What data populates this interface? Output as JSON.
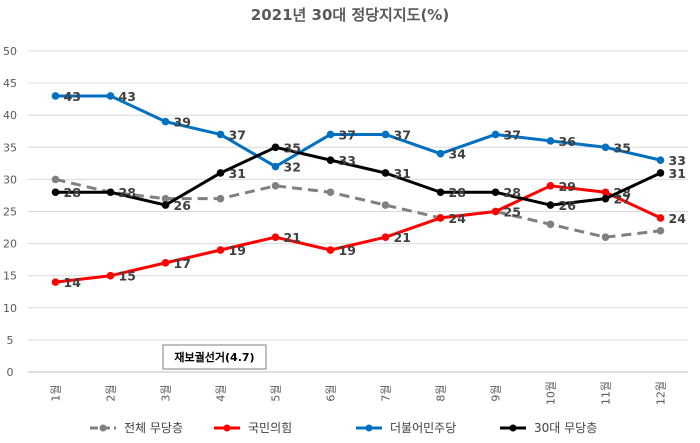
{
  "chart_data": {
    "type": "line",
    "title": "2021년 30대 정당지지도(%)",
    "categories": [
      "1월",
      "2월",
      "3월",
      "4월",
      "5월",
      "6월",
      "7월",
      "8월",
      "9월",
      "10월",
      "11월",
      "12월"
    ],
    "ylim": [
      0,
      50
    ],
    "yticks": [
      0,
      5,
      10,
      15,
      20,
      25,
      30,
      35,
      40,
      45,
      50
    ],
    "grid": true,
    "legend_position": "bottom",
    "series": [
      {
        "name": "전체 무당층",
        "color": "#808080",
        "dashed": true,
        "show_labels": false,
        "values": [
          30,
          28,
          27,
          27,
          29,
          28,
          26,
          24,
          25,
          23,
          21,
          22
        ]
      },
      {
        "name": "국민의힘",
        "color": "#ff0000",
        "dashed": false,
        "show_labels": true,
        "values": [
          14,
          15,
          17,
          19,
          21,
          19,
          21,
          24,
          25,
          29,
          28,
          24
        ]
      },
      {
        "name": "더불어민주당",
        "color": "#0070c0",
        "dashed": false,
        "show_labels": true,
        "values": [
          43,
          43,
          39,
          37,
          32,
          37,
          37,
          34,
          37,
          36,
          35,
          33
        ]
      },
      {
        "name": "30대 무당층",
        "color": "#000000",
        "dashed": false,
        "show_labels": true,
        "values": [
          28,
          28,
          26,
          31,
          35,
          33,
          31,
          28,
          28,
          26,
          27,
          31
        ]
      }
    ],
    "annotation": {
      "text": "재보궐선거(4.7)"
    }
  }
}
